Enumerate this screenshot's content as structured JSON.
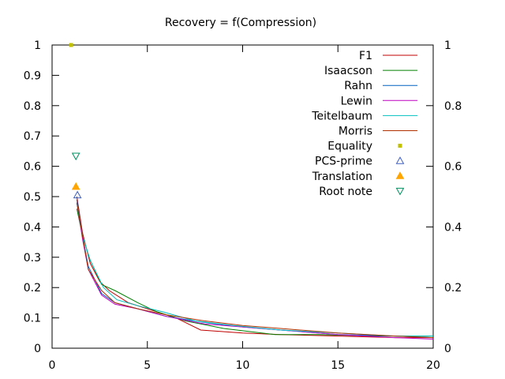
{
  "chart_data": {
    "type": "line",
    "title": "Recovery = f(Compression)",
    "xlabel": "",
    "ylabel": "",
    "xlim": [
      0,
      20
    ],
    "ylim": [
      0,
      1
    ],
    "x_ticks": [
      "0",
      "5",
      "10",
      "15",
      "20"
    ],
    "y_ticks": [
      "0",
      "0.1",
      "0.2",
      "0.3",
      "0.4",
      "0.5",
      "0.6",
      "0.7",
      "0.8",
      "0.9",
      "1"
    ],
    "y2_ticks": [
      "0",
      "0.2",
      "0.4",
      "0.6",
      "0.8",
      "1"
    ],
    "grid": false,
    "legend_position": "top-right",
    "series": [
      {
        "name": "F1",
        "kind": "line",
        "color": "#c00000",
        "x": [
          1.3,
          1.6,
          2.0,
          2.5,
          3.0,
          4.0,
          5.5,
          6.5,
          7.8,
          10.0,
          12.0,
          15.0,
          18.0,
          20.0
        ],
        "y": [
          0.5,
          0.38,
          0.28,
          0.22,
          0.19,
          0.15,
          0.12,
          0.1,
          0.06,
          0.05,
          0.045,
          0.04,
          0.035,
          0.035
        ]
      },
      {
        "name": "Isaacson",
        "kind": "line",
        "color": "#008000",
        "x": [
          1.3,
          1.6,
          2.0,
          2.6,
          3.3,
          4.5,
          5.5,
          7.0,
          9.0,
          11.7,
          14.0,
          17.0,
          20.0
        ],
        "y": [
          0.46,
          0.37,
          0.29,
          0.21,
          0.19,
          0.15,
          0.12,
          0.09,
          0.065,
          0.045,
          0.045,
          0.04,
          0.04
        ]
      },
      {
        "name": "Rahn",
        "kind": "line",
        "color": "#0060c0",
        "x": [
          1.3,
          1.6,
          1.9,
          2.6,
          3.3,
          4.5,
          6.0,
          8.0,
          10.0,
          12.0,
          15.0,
          18.0,
          20.0
        ],
        "y": [
          0.49,
          0.37,
          0.27,
          0.18,
          0.15,
          0.13,
          0.105,
          0.085,
          0.07,
          0.06,
          0.045,
          0.04,
          0.035
        ]
      },
      {
        "name": "Lewin",
        "kind": "line",
        "color": "#c000c0",
        "x": [
          1.3,
          1.6,
          1.9,
          2.6,
          3.3,
          4.5,
          6.0,
          8.0,
          10.0,
          12.0,
          15.0,
          18.0,
          20.0
        ],
        "y": [
          0.48,
          0.36,
          0.26,
          0.175,
          0.145,
          0.13,
          0.105,
          0.08,
          0.07,
          0.06,
          0.045,
          0.035,
          0.03
        ]
      },
      {
        "name": "Teitelbaum",
        "kind": "line",
        "color": "#00c0c0",
        "x": [
          1.3,
          1.6,
          2.0,
          2.7,
          3.4,
          4.5,
          5.8,
          7.5,
          9.5,
          12.0,
          15.0,
          18.0,
          20.0
        ],
        "y": [
          0.48,
          0.37,
          0.29,
          0.2,
          0.16,
          0.14,
          0.12,
          0.09,
          0.075,
          0.06,
          0.05,
          0.04,
          0.04
        ]
      },
      {
        "name": "Morris",
        "kind": "line",
        "color": "#b03000",
        "x": [
          1.3,
          1.6,
          1.9,
          2.6,
          3.3,
          4.5,
          6.0,
          8.0,
          10.0,
          12.0,
          15.0,
          18.0,
          20.0
        ],
        "y": [
          0.48,
          0.37,
          0.26,
          0.19,
          0.15,
          0.13,
          0.11,
          0.09,
          0.075,
          0.065,
          0.05,
          0.04,
          0.035
        ]
      },
      {
        "name": "Equality",
        "kind": "point",
        "marker": "square",
        "color": "#c0c000",
        "x": [
          1.0
        ],
        "y": [
          1.0
        ]
      },
      {
        "name": "PCS-prime",
        "kind": "point",
        "marker": "triangle-open",
        "color": "#4060c0",
        "x": [
          1.33
        ],
        "y": [
          0.505
        ]
      },
      {
        "name": "Translation",
        "kind": "point",
        "marker": "triangle",
        "color": "#ffa500",
        "x": [
          1.25
        ],
        "y": [
          0.533
        ]
      },
      {
        "name": "Root note",
        "kind": "point",
        "marker": "triangle-down-open",
        "color": "#009060",
        "x": [
          1.25
        ],
        "y": [
          0.634
        ]
      }
    ]
  }
}
